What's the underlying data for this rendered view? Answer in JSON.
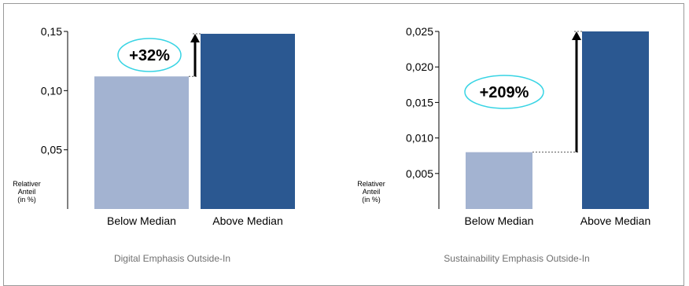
{
  "chart_data": [
    {
      "type": "bar",
      "title": "",
      "subtitle": "Digital Emphasis Outside-In",
      "ylabel_lines": [
        "Relativer",
        "Anteil",
        "(in %)"
      ],
      "categories": [
        "Below Median",
        "Above Median"
      ],
      "values": [
        0.112,
        0.148
      ],
      "ylim": [
        0.0,
        0.15
      ],
      "yticks": [
        {
          "value": 0.05,
          "label": "0,05"
        },
        {
          "value": 0.1,
          "label": "0,10"
        },
        {
          "value": 0.15,
          "label": "0,15"
        }
      ],
      "bar_colors": [
        "#a3b3d1",
        "#2b5891"
      ],
      "annotation": "+32%",
      "annotation_border": "#37d4e4",
      "grid": false
    },
    {
      "type": "bar",
      "title": "",
      "subtitle": "Sustainability Emphasis Outside-In",
      "ylabel_lines": [
        "Relativer",
        "Anteil",
        "(in %)"
      ],
      "categories": [
        "Below Median",
        "Above Median"
      ],
      "values": [
        0.008,
        0.025
      ],
      "ylim": [
        0.0,
        0.025
      ],
      "yticks": [
        {
          "value": 0.005,
          "label": "0,005"
        },
        {
          "value": 0.01,
          "label": "0,010"
        },
        {
          "value": 0.015,
          "label": "0,015"
        },
        {
          "value": 0.02,
          "label": "0,020"
        },
        {
          "value": 0.025,
          "label": "0,025"
        }
      ],
      "bar_colors": [
        "#a3b3d1",
        "#2b5891"
      ],
      "annotation": "+209%",
      "annotation_border": "#37d4e4",
      "grid": false
    }
  ]
}
